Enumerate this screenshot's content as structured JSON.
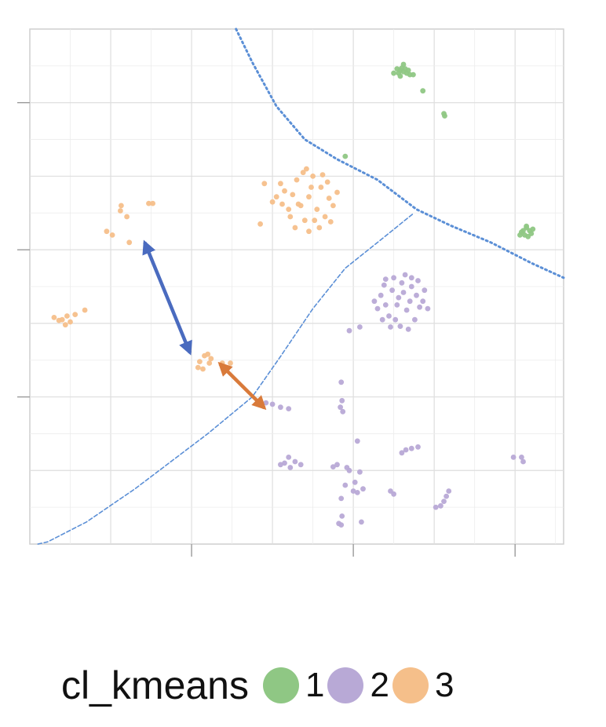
{
  "chart_data": {
    "type": "scatter",
    "title": "",
    "xlabel": "",
    "ylabel": "",
    "xlim": [
      0,
      6.6
    ],
    "ylim": [
      0,
      7
    ],
    "grid": true,
    "legend_position": "bottom",
    "legend": {
      "title": "cl_kmeans",
      "entries": [
        {
          "label": "1",
          "color": "#8fc784"
        },
        {
          "label": "2",
          "color": "#b8a9d6"
        },
        {
          "label": "3",
          "color": "#f5bf8a"
        }
      ]
    },
    "series": [
      {
        "name": "1",
        "color": "#8fc784",
        "points": [
          [
            4.58,
            6.44
          ],
          [
            4.6,
            6.47
          ],
          [
            4.62,
            6.42
          ],
          [
            4.56,
            6.4
          ],
          [
            4.64,
            6.46
          ],
          [
            4.66,
            6.4
          ],
          [
            4.54,
            6.46
          ],
          [
            4.7,
            6.38
          ],
          [
            4.62,
            6.52
          ],
          [
            4.5,
            6.4
          ],
          [
            4.68,
            6.44
          ],
          [
            4.58,
            6.36
          ],
          [
            4.74,
            6.38
          ],
          [
            4.86,
            6.16
          ],
          [
            5.12,
            5.85
          ],
          [
            5.13,
            5.82
          ],
          [
            3.9,
            5.27
          ],
          [
            6.1,
            4.26
          ],
          [
            6.14,
            4.3
          ],
          [
            6.18,
            4.26
          ],
          [
            6.12,
            4.2
          ],
          [
            6.2,
            4.22
          ],
          [
            6.08,
            4.24
          ],
          [
            6.16,
            4.18
          ],
          [
            6.22,
            4.28
          ],
          [
            6.14,
            4.32
          ],
          [
            6.06,
            4.2
          ]
        ]
      },
      {
        "name": "2",
        "color": "#b8a9d6",
        "points": [
          [
            4.56,
            3.35
          ],
          [
            4.62,
            3.42
          ],
          [
            4.7,
            3.3
          ],
          [
            4.48,
            3.45
          ],
          [
            4.78,
            3.38
          ],
          [
            4.4,
            3.25
          ],
          [
            4.66,
            3.18
          ],
          [
            4.52,
            3.05
          ],
          [
            4.82,
            3.22
          ],
          [
            4.6,
            3.55
          ],
          [
            4.34,
            3.38
          ],
          [
            4.72,
            3.5
          ],
          [
            4.44,
            3.1
          ],
          [
            4.86,
            3.3
          ],
          [
            4.58,
            2.96
          ],
          [
            4.3,
            3.2
          ],
          [
            4.76,
            3.05
          ],
          [
            4.5,
            3.62
          ],
          [
            4.88,
            3.45
          ],
          [
            4.64,
            3.66
          ],
          [
            4.38,
            3.52
          ],
          [
            4.68,
            2.92
          ],
          [
            4.26,
            3.3
          ],
          [
            4.92,
            3.2
          ],
          [
            4.46,
            2.95
          ],
          [
            4.8,
            3.58
          ],
          [
            4.36,
            3.05
          ],
          [
            4.54,
            3.25
          ],
          [
            4.72,
            3.62
          ],
          [
            4.4,
            3.6
          ],
          [
            4.08,
            2.95
          ],
          [
            3.95,
            2.9
          ],
          [
            3.0,
            1.9
          ],
          [
            3.1,
            1.86
          ],
          [
            3.2,
            1.84
          ],
          [
            2.92,
            1.92
          ],
          [
            3.85,
            2.2
          ],
          [
            3.86,
            1.95
          ],
          [
            3.84,
            1.86
          ],
          [
            3.87,
            1.8
          ],
          [
            3.15,
            1.1
          ],
          [
            3.22,
            1.04
          ],
          [
            3.28,
            1.12
          ],
          [
            3.2,
            1.18
          ],
          [
            3.1,
            1.08
          ],
          [
            3.35,
            1.08
          ],
          [
            3.75,
            1.05
          ],
          [
            3.8,
            1.08
          ],
          [
            3.92,
            1.04
          ],
          [
            4.05,
            1.4
          ],
          [
            3.95,
            1.0
          ],
          [
            4.08,
            0.98
          ],
          [
            4.02,
            0.84
          ],
          [
            3.9,
            0.8
          ],
          [
            4.0,
            0.72
          ],
          [
            4.05,
            0.7
          ],
          [
            4.12,
            0.75
          ],
          [
            3.85,
            0.62
          ],
          [
            4.65,
            1.28
          ],
          [
            4.72,
            1.3
          ],
          [
            4.8,
            1.32
          ],
          [
            4.6,
            1.24
          ],
          [
            4.46,
            0.72
          ],
          [
            4.5,
            0.68
          ],
          [
            5.15,
            0.65
          ],
          [
            5.18,
            0.72
          ],
          [
            5.12,
            0.58
          ],
          [
            5.08,
            0.52
          ],
          [
            5.02,
            0.5
          ],
          [
            3.86,
            0.38
          ],
          [
            3.85,
            0.26
          ],
          [
            3.82,
            0.28
          ],
          [
            4.1,
            0.3
          ],
          [
            5.98,
            1.18
          ],
          [
            6.08,
            1.18
          ],
          [
            6.1,
            1.12
          ]
        ]
      },
      {
        "name": "3",
        "color": "#f5bf8a",
        "points": [
          [
            3.35,
            4.6
          ],
          [
            3.45,
            4.72
          ],
          [
            3.55,
            4.55
          ],
          [
            3.25,
            4.75
          ],
          [
            3.6,
            4.85
          ],
          [
            3.4,
            4.4
          ],
          [
            3.3,
            4.95
          ],
          [
            3.65,
            4.45
          ],
          [
            3.2,
            4.55
          ],
          [
            3.5,
            5.0
          ],
          [
            3.7,
            4.7
          ],
          [
            3.15,
            4.8
          ],
          [
            3.45,
            4.25
          ],
          [
            3.58,
            4.3
          ],
          [
            3.28,
            4.3
          ],
          [
            3.75,
            4.6
          ],
          [
            3.38,
            5.05
          ],
          [
            3.62,
            5.02
          ],
          [
            3.12,
            4.62
          ],
          [
            3.48,
            4.85
          ],
          [
            3.22,
            4.45
          ],
          [
            3.68,
            4.92
          ],
          [
            3.05,
            4.72
          ],
          [
            3.8,
            4.78
          ],
          [
            3.1,
            4.9
          ],
          [
            3.52,
            4.4
          ],
          [
            3.32,
            4.62
          ],
          [
            3.42,
            5.1
          ],
          [
            3.72,
            4.38
          ],
          [
            3.0,
            4.65
          ],
          [
            2.9,
            4.9
          ],
          [
            2.85,
            4.35
          ],
          [
            1.13,
            4.6
          ],
          [
            1.2,
            4.45
          ],
          [
            1.12,
            4.53
          ],
          [
            1.47,
            4.63
          ],
          [
            1.52,
            4.63
          ],
          [
            0.95,
            4.25
          ],
          [
            1.02,
            4.2
          ],
          [
            1.23,
            4.1
          ],
          [
            0.4,
            3.05
          ],
          [
            0.46,
            3.1
          ],
          [
            0.5,
            3.02
          ],
          [
            0.44,
            2.98
          ],
          [
            0.36,
            3.04
          ],
          [
            0.56,
            3.12
          ],
          [
            0.68,
            3.18
          ],
          [
            0.3,
            3.08
          ],
          [
            2.1,
            2.48
          ],
          [
            2.16,
            2.56
          ],
          [
            2.22,
            2.46
          ],
          [
            2.08,
            2.4
          ],
          [
            2.24,
            2.52
          ],
          [
            2.14,
            2.38
          ],
          [
            2.2,
            2.58
          ],
          [
            2.38,
            2.46
          ],
          [
            2.48,
            2.46
          ]
        ]
      }
    ],
    "curves": [
      {
        "style": "dotted",
        "color": "#5b8fd6",
        "points": [
          [
            2.55,
            7.0
          ],
          [
            2.75,
            6.55
          ],
          [
            3.05,
            5.95
          ],
          [
            3.4,
            5.5
          ],
          [
            3.8,
            5.23
          ],
          [
            4.3,
            4.95
          ],
          [
            4.78,
            4.55
          ],
          [
            5.2,
            4.33
          ],
          [
            5.7,
            4.1
          ],
          [
            6.2,
            3.82
          ],
          [
            6.6,
            3.62
          ]
        ]
      },
      {
        "style": "dashed",
        "color": "#5b8fd6",
        "points": [
          [
            0.1,
            0.0
          ],
          [
            0.22,
            0.03
          ],
          [
            0.7,
            0.3
          ],
          [
            1.3,
            0.75
          ],
          [
            2.2,
            1.5
          ],
          [
            2.75,
            2.0
          ],
          [
            3.1,
            2.55
          ],
          [
            3.5,
            3.2
          ],
          [
            3.9,
            3.75
          ],
          [
            4.3,
            4.1
          ],
          [
            4.75,
            4.5
          ]
        ]
      }
    ],
    "arrows": [
      {
        "color": "#4a6bbf",
        "from": [
          1.42,
          4.1
        ],
        "to": [
          1.98,
          2.6
        ]
      },
      {
        "color": "#d97a3a",
        "from": [
          2.35,
          2.45
        ],
        "to": [
          2.9,
          1.85
        ]
      }
    ]
  }
}
